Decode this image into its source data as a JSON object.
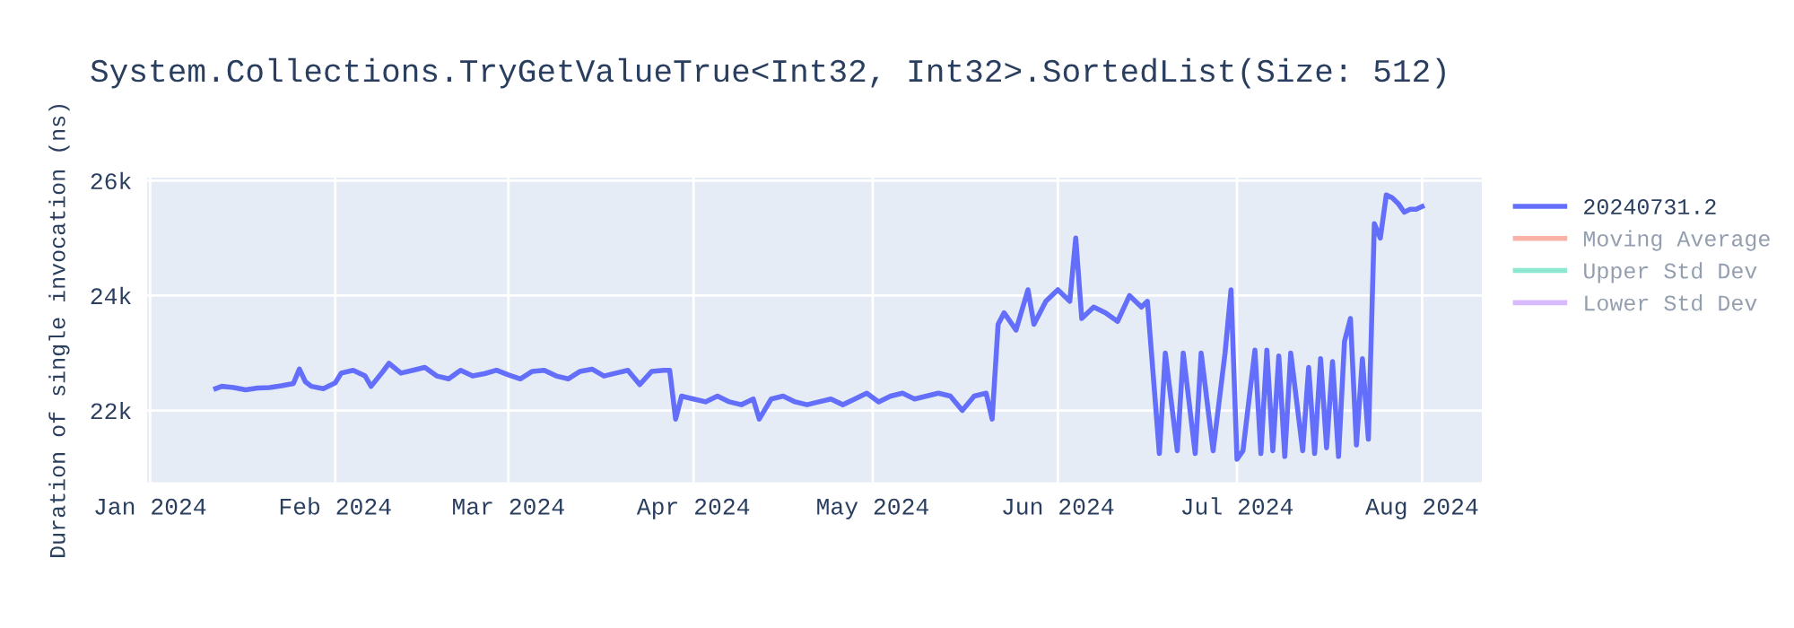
{
  "chart_data": {
    "type": "line",
    "title": "System.Collections.TryGetValueTrue<Int32, Int32>.SortedList(Size: 512)",
    "ylabel": "Duration of single invocation (ns)",
    "xlim": [
      "2023-12-31T12:00",
      "2024-08-11"
    ],
    "ylim": [
      20750,
      26050
    ],
    "xticks": [
      {
        "value": "2024-01-01",
        "label": "Jan 2024"
      },
      {
        "value": "2024-02-01",
        "label": "Feb 2024"
      },
      {
        "value": "2024-03-01",
        "label": "Mar 2024"
      },
      {
        "value": "2024-04-01",
        "label": "Apr 2024"
      },
      {
        "value": "2024-05-01",
        "label": "May 2024"
      },
      {
        "value": "2024-06-01",
        "label": "Jun 2024"
      },
      {
        "value": "2024-07-01",
        "label": "Jul 2024"
      },
      {
        "value": "2024-08-01",
        "label": "Aug 2024"
      }
    ],
    "yticks": [
      {
        "value": 22000,
        "label": "22k"
      },
      {
        "value": 24000,
        "label": "24k"
      },
      {
        "value": 26000,
        "label": "26k"
      }
    ],
    "grid": true,
    "legend": "top right",
    "marker": "none",
    "line_style": "solid",
    "series": [
      {
        "name": "20240731.2",
        "color": "#636efa",
        "x": [
          "2024-01-12",
          "2024-01-13",
          "2024-01-15",
          "2024-01-17",
          "2024-01-19",
          "2024-01-21",
          "2024-01-23",
          "2024-01-25",
          "2024-01-26",
          "2024-01-27",
          "2024-01-28",
          "2024-01-30",
          "2024-02-01",
          "2024-02-02",
          "2024-02-04",
          "2024-02-06",
          "2024-02-07",
          "2024-02-09",
          "2024-02-10",
          "2024-02-12",
          "2024-02-14",
          "2024-02-16",
          "2024-02-18",
          "2024-02-20",
          "2024-02-22",
          "2024-02-24",
          "2024-02-26",
          "2024-02-28",
          "2024-03-01",
          "2024-03-03",
          "2024-03-05",
          "2024-03-07",
          "2024-03-09",
          "2024-03-11",
          "2024-03-13",
          "2024-03-15",
          "2024-03-17",
          "2024-03-19",
          "2024-03-21",
          "2024-03-23",
          "2024-03-25",
          "2024-03-27",
          "2024-03-28",
          "2024-03-29",
          "2024-03-30",
          "2024-04-01",
          "2024-04-03",
          "2024-04-05",
          "2024-04-07",
          "2024-04-09",
          "2024-04-11",
          "2024-04-12",
          "2024-04-14",
          "2024-04-16",
          "2024-04-18",
          "2024-04-20",
          "2024-04-22",
          "2024-04-24",
          "2024-04-26",
          "2024-04-28",
          "2024-04-30",
          "2024-05-02",
          "2024-05-04",
          "2024-05-06",
          "2024-05-08",
          "2024-05-10",
          "2024-05-12",
          "2024-05-14",
          "2024-05-16",
          "2024-05-18",
          "2024-05-20",
          "2024-05-21",
          "2024-05-22",
          "2024-05-23",
          "2024-05-25",
          "2024-05-27",
          "2024-05-28",
          "2024-05-30",
          "2024-06-01",
          "2024-06-03",
          "2024-06-04",
          "2024-06-05",
          "2024-06-07",
          "2024-06-09",
          "2024-06-11",
          "2024-06-13",
          "2024-06-15",
          "2024-06-16",
          "2024-06-18",
          "2024-06-19",
          "2024-06-21",
          "2024-06-22",
          "2024-06-24",
          "2024-06-25",
          "2024-06-27",
          "2024-06-29",
          "2024-06-30",
          "2024-07-01",
          "2024-07-02",
          "2024-07-04",
          "2024-07-05",
          "2024-07-06",
          "2024-07-07",
          "2024-07-08",
          "2024-07-09",
          "2024-07-10",
          "2024-07-12",
          "2024-07-13",
          "2024-07-14",
          "2024-07-15",
          "2024-07-16",
          "2024-07-17",
          "2024-07-18",
          "2024-07-19",
          "2024-07-20",
          "2024-07-21",
          "2024-07-22",
          "2024-07-23",
          "2024-07-24",
          "2024-07-25",
          "2024-07-26",
          "2024-07-27",
          "2024-07-28",
          "2024-07-29",
          "2024-07-30",
          "2024-07-31",
          "2024-08-01"
        ],
        "values": [
          22380,
          22420,
          22400,
          22360,
          22390,
          22400,
          22430,
          22470,
          22720,
          22500,
          22420,
          22380,
          22480,
          22650,
          22700,
          22600,
          22420,
          22680,
          22820,
          22650,
          22700,
          22750,
          22600,
          22550,
          22700,
          22600,
          22640,
          22700,
          22620,
          22550,
          22680,
          22700,
          22600,
          22550,
          22680,
          22720,
          22600,
          22650,
          22700,
          22450,
          22680,
          22700,
          22700,
          21850,
          22250,
          22200,
          22150,
          22250,
          22150,
          22100,
          22200,
          21850,
          22200,
          22250,
          22150,
          22100,
          22150,
          22200,
          22100,
          22200,
          22300,
          22150,
          22250,
          22300,
          22200,
          22250,
          22300,
          22250,
          22000,
          22250,
          22300,
          21850,
          23500,
          23700,
          23400,
          24100,
          23500,
          23900,
          24100,
          23900,
          25000,
          23600,
          23800,
          23700,
          23550,
          24000,
          23800,
          23900,
          21250,
          23000,
          21300,
          23000,
          21250,
          23000,
          21300,
          23000,
          24100,
          21150,
          21300,
          23050,
          21250,
          23050,
          21300,
          22950,
          21200,
          23000,
          21300,
          22750,
          21250,
          22900,
          21350,
          22850,
          21200,
          23200,
          23600,
          21400,
          22900,
          21500,
          25250,
          25000,
          25750,
          25700,
          25600,
          25450,
          25500,
          25500,
          25550
        ]
      },
      {
        "name": "Moving Average",
        "color": "#ef553b"
      },
      {
        "name": "Upper Std Dev",
        "color": "#00cc96"
      },
      {
        "name": "Lower Std Dev",
        "color": "#ab63fa"
      }
    ]
  }
}
